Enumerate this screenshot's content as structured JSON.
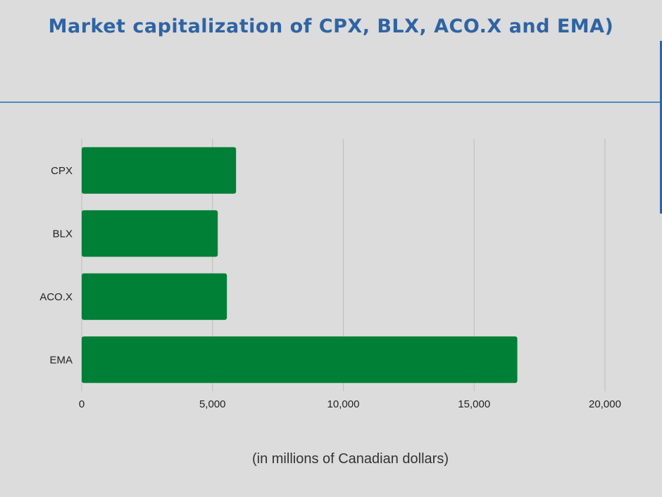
{
  "title": "Market capitalization of CPX, BLX, ACO.X and EMA)",
  "xlabel": "(in millions of Canadian dollars)",
  "colors": {
    "bar": "#007f36",
    "title": "#2f64a3",
    "divider": "#4a8ec7",
    "grid": "#bdbdbd",
    "background": "#dcdcdc"
  },
  "chart_data": {
    "type": "bar",
    "orientation": "horizontal",
    "title": "Market capitalization of CPX, BLX, ACO.X and EMA)",
    "xlabel": "(in millions of Canadian dollars)",
    "ylabel": "",
    "categories": [
      "CPX",
      "BLX",
      "ACO.X",
      "EMA"
    ],
    "values": [
      5900,
      5200,
      5550,
      16650
    ],
    "xlim": [
      0,
      20000
    ],
    "xticks": [
      0,
      5000,
      10000,
      15000,
      20000
    ],
    "xtick_labels": [
      "0",
      "5,000",
      "10,000",
      "15,000",
      "20,000"
    ],
    "grid": "vertical",
    "legend": "none"
  }
}
